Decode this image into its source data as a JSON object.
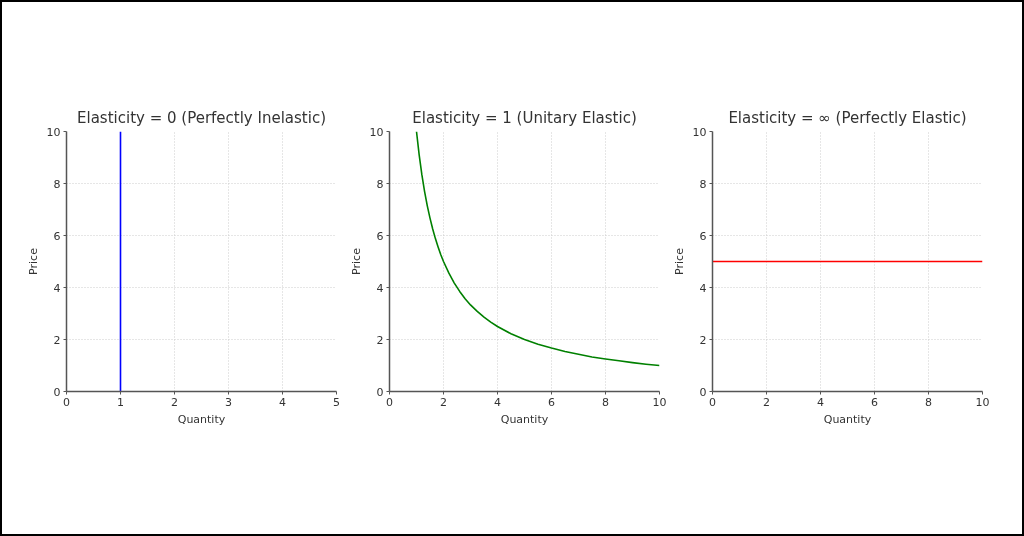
{
  "chart_data": [
    {
      "type": "line",
      "title": "Elasticity = 0 (Perfectly Inelastic)",
      "xlabel": "Quantity",
      "ylabel": "Price",
      "x": [
        1,
        1
      ],
      "series": [
        {
          "color": "#0000ff",
          "values": [
            0,
            10
          ]
        }
      ],
      "xlim": [
        0,
        5
      ],
      "ylim": [
        0,
        10
      ],
      "xticks": [
        0,
        1,
        2,
        3,
        4,
        5
      ],
      "yticks": [
        0,
        2,
        4,
        6,
        8,
        10
      ],
      "grid": true
    },
    {
      "type": "line",
      "title": "Elasticity = 1 (Unitary Elastic)",
      "xlabel": "Quantity",
      "ylabel": "Price",
      "x": [
        1,
        1.1,
        1.2,
        1.3,
        1.4,
        1.5,
        1.6,
        1.7,
        1.8,
        1.9,
        2,
        2.2,
        2.4,
        2.6,
        2.8,
        3,
        3.25,
        3.5,
        3.75,
        4,
        4.5,
        5,
        5.5,
        6,
        6.5,
        7,
        7.5,
        8,
        8.5,
        9,
        9.5,
        10
      ],
      "series": [
        {
          "color": "#008000",
          "values": [
            10,
            9.09,
            8.33,
            7.69,
            7.14,
            6.67,
            6.25,
            5.88,
            5.56,
            5.26,
            5,
            4.55,
            4.17,
            3.85,
            3.57,
            3.33,
            3.08,
            2.86,
            2.67,
            2.5,
            2.22,
            2,
            1.82,
            1.67,
            1.54,
            1.43,
            1.33,
            1.25,
            1.18,
            1.11,
            1.05,
            1
          ]
        }
      ],
      "xlim": [
        0,
        10
      ],
      "ylim": [
        0,
        10
      ],
      "xticks": [
        0,
        2,
        4,
        6,
        8,
        10
      ],
      "yticks": [
        0,
        2,
        4,
        6,
        8,
        10
      ],
      "grid": true
    },
    {
      "type": "line",
      "title": "Elasticity = ∞ (Perfectly Elastic)",
      "xlabel": "Quantity",
      "ylabel": "Price",
      "x": [
        0,
        10
      ],
      "series": [
        {
          "color": "#ff0000",
          "values": [
            5,
            5
          ]
        }
      ],
      "xlim": [
        0,
        10
      ],
      "ylim": [
        0,
        10
      ],
      "xticks": [
        0,
        2,
        4,
        6,
        8,
        10
      ],
      "yticks": [
        0,
        2,
        4,
        6,
        8,
        10
      ],
      "grid": true
    }
  ]
}
